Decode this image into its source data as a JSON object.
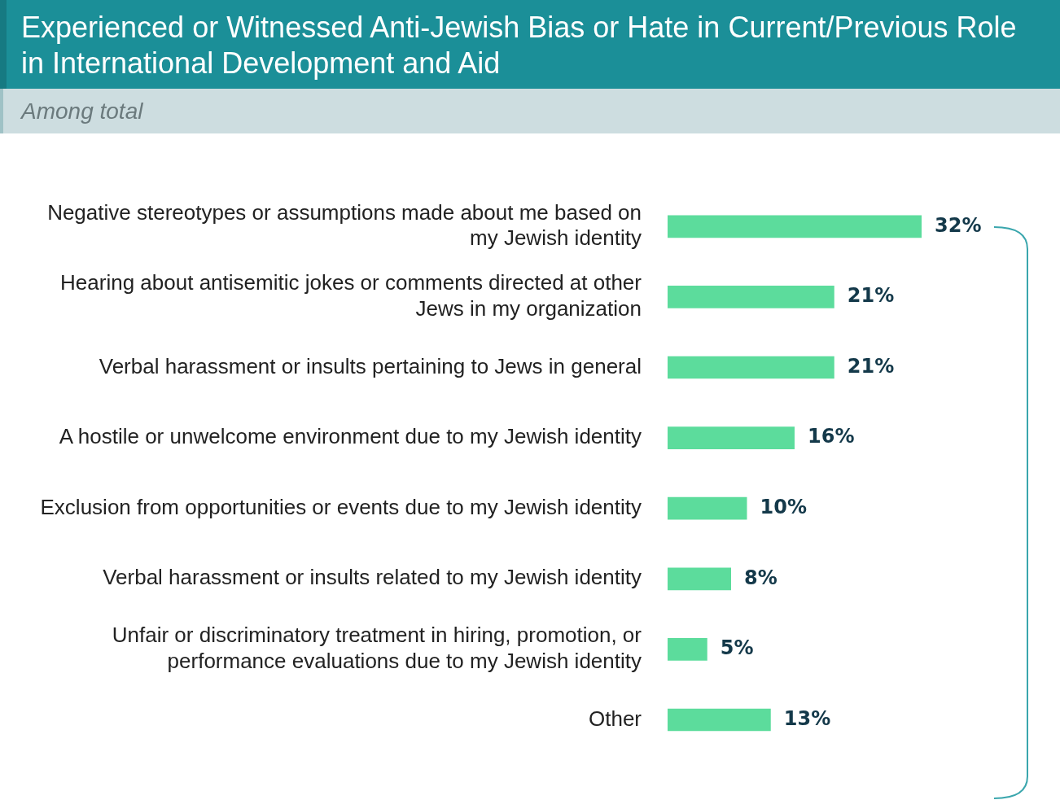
{
  "chart_data": {
    "type": "bar",
    "orientation": "horizontal",
    "title": "Experienced or Witnessed Anti-Jewish Bias or Hate in Current/Previous Role in International Development and Aid",
    "subtitle": "Among total",
    "categories": [
      "Negative stereotypes or assumptions made about me based on my Jewish identity",
      "Hearing about antisemitic jokes or comments directed at other Jews in my organization",
      "Verbal harassment or insults pertaining to Jews in general",
      "A hostile or unwelcome environment due to my Jewish identity",
      "Exclusion from opportunities or events due to my Jewish identity",
      "Verbal harassment or insults related to my Jewish identity",
      "Unfair or discriminatory treatment in hiring, promotion, or performance evaluations due to my Jewish identity",
      "Other"
    ],
    "series": [
      {
        "color": "#5cdc9c",
        "values": [
          32,
          21,
          21,
          16,
          10,
          8,
          5,
          13
        ],
        "value_labels": [
          "32%",
          "21%",
          "21%",
          "16%",
          "10%",
          "8%",
          "5%",
          "13%"
        ]
      }
    ],
    "legend": false
  }
}
